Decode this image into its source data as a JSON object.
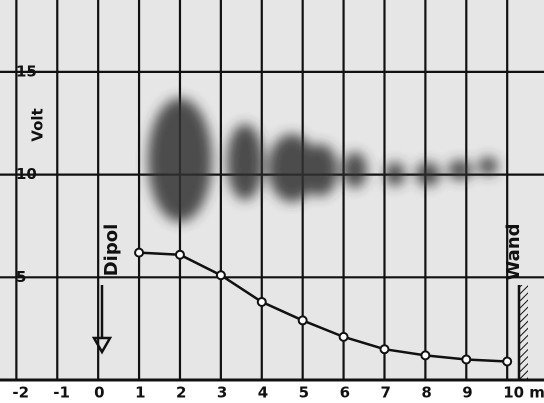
{
  "chart_data": {
    "type": "line",
    "y_label": "Volt",
    "annotations": [
      "Dipol",
      "Wand"
    ],
    "x": [
      1,
      2,
      3,
      4,
      5,
      6,
      7,
      8,
      9,
      10
    ],
    "series": [
      {
        "color": "#111111",
        "values": [
          6.2,
          6.1,
          5.1,
          3.8,
          2.9,
          2.1,
          1.5,
          1.2,
          1.0,
          0.9
        ]
      }
    ],
    "xlim": [
      -2.4,
      10.9
    ],
    "ylim": [
      0,
      18.5
    ],
    "xticks": [
      -2,
      -1,
      0,
      1,
      2,
      3,
      4,
      5,
      6,
      7,
      8,
      9,
      {
        "value": 10,
        "label": "10 m"
      }
    ],
    "yticks": [
      5,
      10,
      15
    ],
    "grid": true
  }
}
